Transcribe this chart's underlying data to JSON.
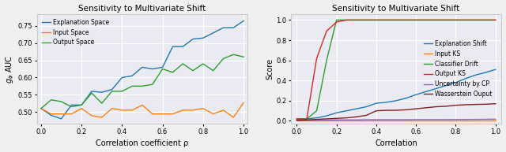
{
  "left": {
    "title": "Sensitivity to Multivariate Shift",
    "xlabel": "Correlation coefficient ρ",
    "ylabel": "$g_\\varphi$ AUC",
    "xlim": [
      -0.02,
      1.02
    ],
    "ylim": [
      0.465,
      0.785
    ],
    "yticks": [
      0.5,
      0.55,
      0.6,
      0.65,
      0.7,
      0.75
    ],
    "xticks": [
      0.0,
      0.2,
      0.4,
      0.6,
      0.8,
      1.0
    ],
    "x": [
      0.0,
      0.05,
      0.1,
      0.15,
      0.2,
      0.25,
      0.3,
      0.35,
      0.4,
      0.45,
      0.5,
      0.55,
      0.6,
      0.65,
      0.7,
      0.75,
      0.8,
      0.85,
      0.9,
      0.95,
      1.0
    ],
    "explanation_space": [
      0.51,
      0.49,
      0.48,
      0.52,
      0.52,
      0.56,
      0.557,
      0.565,
      0.6,
      0.605,
      0.63,
      0.625,
      0.63,
      0.69,
      0.69,
      0.712,
      0.715,
      0.73,
      0.745,
      0.745,
      0.765
    ],
    "input_space": [
      0.51,
      0.494,
      0.494,
      0.494,
      0.51,
      0.489,
      0.484,
      0.51,
      0.505,
      0.505,
      0.52,
      0.494,
      0.494,
      0.494,
      0.505,
      0.505,
      0.51,
      0.494,
      0.505,
      0.484,
      0.527
    ],
    "output_space": [
      0.51,
      0.535,
      0.53,
      0.515,
      0.52,
      0.555,
      0.525,
      0.56,
      0.56,
      0.575,
      0.575,
      0.58,
      0.625,
      0.615,
      0.64,
      0.62,
      0.64,
      0.62,
      0.655,
      0.667,
      0.66
    ],
    "colors": {
      "explanation_space": "#1f77b4",
      "input_space": "#ff7f0e",
      "output_space": "#2ca02c"
    },
    "legend": [
      "Explanation Space",
      "Input Space",
      "Output Space"
    ]
  },
  "right": {
    "title": "Sensitivity to Multivariate Shift",
    "xlabel": "Correlation",
    "ylabel": "Score",
    "xlim": [
      -0.03,
      1.03
    ],
    "ylim": [
      -0.03,
      1.06
    ],
    "yticks": [
      0.0,
      0.2,
      0.4,
      0.6,
      0.8,
      1.0
    ],
    "xticks": [
      0.0,
      0.2,
      0.4,
      0.6,
      0.8,
      1.0
    ],
    "x": [
      0.0,
      0.05,
      0.1,
      0.15,
      0.2,
      0.25,
      0.3,
      0.35,
      0.4,
      0.45,
      0.5,
      0.55,
      0.6,
      0.65,
      0.7,
      0.75,
      0.8,
      0.85,
      0.9,
      0.95,
      1.0
    ],
    "explanation_shift": [
      0.02,
      0.02,
      0.03,
      0.05,
      0.08,
      0.1,
      0.12,
      0.14,
      0.175,
      0.185,
      0.2,
      0.225,
      0.26,
      0.29,
      0.32,
      0.35,
      0.38,
      0.42,
      0.455,
      0.48,
      0.51
    ],
    "input_ks": [
      0.005,
      0.005,
      0.005,
      0.005,
      0.005,
      0.005,
      0.005,
      0.005,
      0.005,
      0.005,
      0.005,
      0.005,
      0.005,
      0.005,
      0.005,
      0.005,
      0.005,
      0.005,
      0.005,
      0.005,
      0.005
    ],
    "classifier_drift": [
      0.02,
      0.02,
      0.1,
      0.6,
      1.0,
      1.0,
      1.0,
      1.0,
      1.0,
      1.0,
      1.0,
      1.0,
      1.0,
      1.0,
      1.0,
      1.0,
      1.0,
      1.0,
      1.0,
      1.0,
      1.0
    ],
    "output_ks": [
      0.02,
      0.015,
      0.62,
      0.89,
      0.98,
      1.0,
      1.0,
      1.0,
      1.0,
      1.0,
      1.0,
      1.0,
      1.0,
      1.0,
      1.0,
      1.0,
      1.0,
      1.0,
      1.0,
      1.0,
      1.0
    ],
    "uncertainty_cp": [
      0.005,
      0.005,
      0.005,
      0.007,
      0.01,
      0.01,
      0.01,
      0.012,
      0.012,
      0.012,
      0.012,
      0.012,
      0.013,
      0.013,
      0.013,
      0.013,
      0.014,
      0.014,
      0.015,
      0.016,
      0.017
    ],
    "wasserstein_output": [
      0.005,
      0.01,
      0.015,
      0.02,
      0.025,
      0.03,
      0.04,
      0.055,
      0.1,
      0.105,
      0.105,
      0.11,
      0.12,
      0.13,
      0.14,
      0.145,
      0.155,
      0.16,
      0.163,
      0.165,
      0.17
    ],
    "colors": {
      "explanation_shift": "#1f77b4",
      "input_ks": "#ff7f0e",
      "classifier_drift": "#2ca02c",
      "output_ks": "#d62728",
      "uncertainty_cp": "#9467bd",
      "wasserstein_output": "#7f2020"
    },
    "legend": [
      "Explanation Shift",
      "Input KS",
      "Classifier Drift",
      "Output KS",
      "Uncertainty by CP",
      "Wasserstein Ouput"
    ]
  },
  "fig_facecolor": "#f0f0f0",
  "grid_color": "#c8c8c8"
}
